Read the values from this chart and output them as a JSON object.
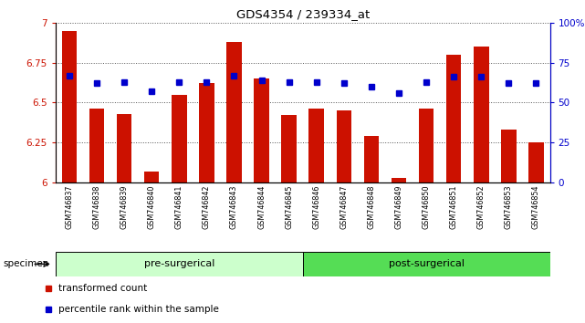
{
  "title": "GDS4354 / 239334_at",
  "categories": [
    "GSM746837",
    "GSM746838",
    "GSM746839",
    "GSM746840",
    "GSM746841",
    "GSM746842",
    "GSM746843",
    "GSM746844",
    "GSM746845",
    "GSM746846",
    "GSM746847",
    "GSM746848",
    "GSM746849",
    "GSM746850",
    "GSM746851",
    "GSM746852",
    "GSM746853",
    "GSM746854"
  ],
  "bar_values": [
    6.95,
    6.46,
    6.43,
    6.07,
    6.55,
    6.62,
    6.88,
    6.65,
    6.42,
    6.46,
    6.45,
    6.29,
    6.03,
    6.46,
    6.8,
    6.85,
    6.33,
    6.25
  ],
  "percentile_values": [
    67,
    62,
    63,
    57,
    63,
    63,
    67,
    64,
    63,
    63,
    62,
    60,
    56,
    63,
    66,
    66,
    62,
    62
  ],
  "bar_color": "#cc1100",
  "percentile_color": "#0000cc",
  "ylim_left": [
    6.0,
    7.0
  ],
  "ylim_right": [
    0,
    100
  ],
  "yticks_left": [
    6.0,
    6.25,
    6.5,
    6.75,
    7.0
  ],
  "yticks_right": [
    0,
    25,
    50,
    75,
    100
  ],
  "ytick_labels_left": [
    "6",
    "6.25",
    "6.5",
    "6.75",
    "7"
  ],
  "ytick_labels_right": [
    "0",
    "25",
    "50",
    "75",
    "100%"
  ],
  "groups": [
    {
      "label": "pre-surgerical",
      "start": 0,
      "end": 8,
      "color": "#ccffcc"
    },
    {
      "label": "post-surgerical",
      "start": 9,
      "end": 17,
      "color": "#55dd55"
    }
  ],
  "legend": [
    {
      "label": "transformed count",
      "color": "#cc1100"
    },
    {
      "label": "percentile rank within the sample",
      "color": "#0000cc"
    }
  ],
  "specimen_label": "specimen",
  "background_color": "#ffffff",
  "bar_width": 0.55,
  "grid_color": "#555555",
  "tick_label_color_left": "#cc1100",
  "tick_label_color_right": "#0000cc",
  "xtick_bg_color": "#cccccc",
  "n_pre": 9,
  "n_post": 9
}
